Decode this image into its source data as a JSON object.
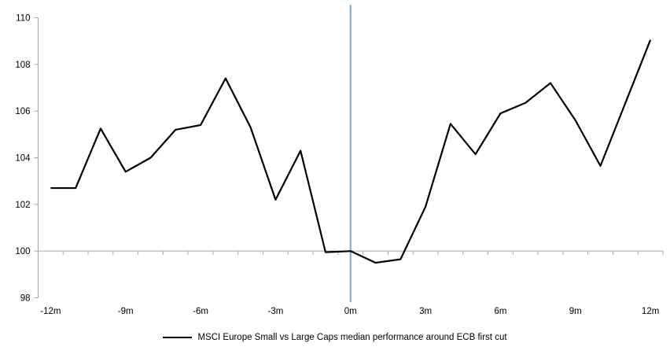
{
  "chart_data": {
    "type": "line",
    "title": "",
    "xlabel": "",
    "ylabel": "",
    "x_unit": "months relative to ECB first cut",
    "x": [
      -12,
      -11,
      -10,
      -9,
      -8,
      -7,
      -6,
      -5,
      -4,
      -3,
      -2,
      -1,
      0,
      1,
      2,
      3,
      4,
      5,
      6,
      7,
      8,
      9,
      10,
      11,
      12
    ],
    "series": [
      {
        "name": "MSCI Europe Small vs Large Caps median performance around ECB first cut",
        "color": "#000000",
        "values": [
          102.7,
          102.7,
          105.25,
          103.4,
          104.0,
          105.2,
          105.4,
          107.4,
          105.3,
          102.2,
          104.3,
          99.95,
          100.0,
          99.5,
          99.65,
          101.9,
          105.45,
          104.15,
          105.9,
          106.35,
          107.2,
          105.6,
          103.65,
          106.35,
          109.05
        ]
      }
    ],
    "ylim": [
      98,
      110
    ],
    "yticks": [
      98,
      100,
      102,
      104,
      106,
      108,
      110
    ],
    "xticks": {
      "months": [
        -12,
        -9,
        -6,
        -3,
        0,
        3,
        6,
        9,
        12
      ],
      "labels": [
        "-12m",
        "-9m",
        "-6m",
        "-3m",
        "0m",
        "3m",
        "6m",
        "9m",
        "12m"
      ]
    },
    "baseline_value": 100,
    "event_line_x": 0,
    "grid": "off",
    "legend_position": "bottom-center"
  },
  "legend": {
    "label": "MSCI Europe Small vs Large Caps median performance around ECB first cut"
  },
  "colors": {
    "series": "#000000",
    "axis": "#A6A6A6",
    "event_line": "#7BA7CF",
    "background": "#FFFFFF",
    "text": "#000000"
  }
}
